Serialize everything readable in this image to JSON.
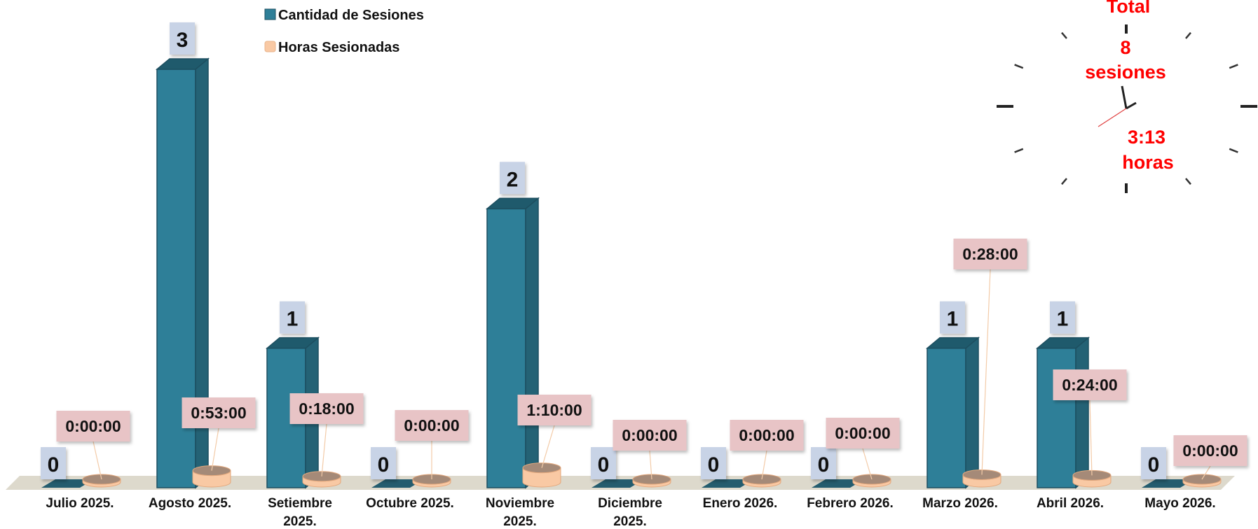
{
  "chart_data": {
    "type": "bar",
    "categories": [
      [
        "Julio 2025."
      ],
      [
        "Agosto 2025."
      ],
      [
        "Setiembre",
        "2025."
      ],
      [
        "Octubre 2025."
      ],
      [
        "Noviembre",
        "2025."
      ],
      [
        "Diciembre",
        "2025."
      ],
      [
        "Enero 2026."
      ],
      [
        "Febrero 2026."
      ],
      [
        "Marzo 2026."
      ],
      [
        "Abril 2026."
      ],
      [
        "Mayo 2026."
      ]
    ],
    "series": [
      {
        "name": "Cantidad de Sesiones",
        "color": "#2e7f98",
        "values": [
          0,
          3,
          1,
          0,
          2,
          0,
          0,
          0,
          1,
          1,
          0
        ],
        "labels": [
          "0",
          "3",
          "1",
          "0",
          "2",
          "0",
          "0",
          "0",
          "1",
          "1",
          "0"
        ]
      },
      {
        "name": "Horas Sesionadas",
        "color": "#f9c9a4",
        "values": [
          0,
          0.883,
          0.3,
          0,
          1.167,
          0,
          0,
          0,
          0.467,
          0.4,
          0
        ],
        "labels": [
          "0:00:00",
          "0:53:00",
          "0:18:00",
          "0:00:00",
          "1:10:00",
          "0:00:00",
          "0:00:00",
          "0:00:00",
          "0:28:00",
          "0:24:00",
          "0:00:00"
        ]
      }
    ],
    "ylim": [
      0,
      3
    ],
    "legend": "top-left",
    "grid": false
  },
  "total": {
    "title": "Total",
    "sessions_value": "8",
    "sessions_unit": "sesiones",
    "hours_value": "3:13",
    "hours_unit": "horas",
    "icon": "clock-icon"
  }
}
